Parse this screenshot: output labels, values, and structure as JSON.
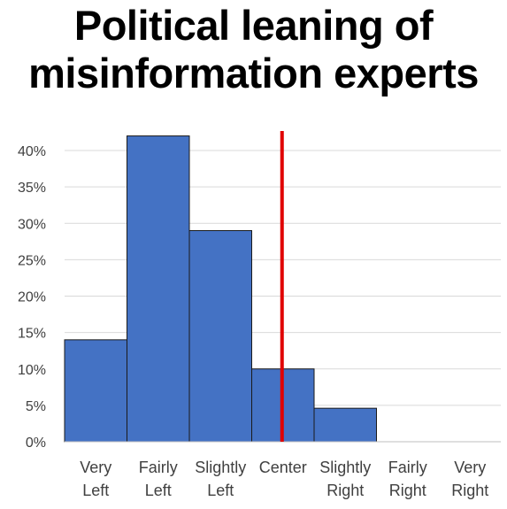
{
  "chart_data": {
    "type": "bar",
    "title_lines": [
      "Political leaning of",
      "misinformation experts"
    ],
    "categories": [
      [
        "Very",
        "Left"
      ],
      [
        "Fairly",
        "Left"
      ],
      [
        "Slightly",
        "Left"
      ],
      [
        "Center"
      ],
      [
        "Slightly",
        "Right"
      ],
      [
        "Fairly",
        "Right"
      ],
      [
        "Very",
        "Right"
      ]
    ],
    "values": [
      14,
      42,
      29,
      10,
      4.6,
      0,
      0
    ],
    "ylim": [
      0,
      40
    ],
    "yticks": [
      "0%",
      "5%",
      "10%",
      "15%",
      "20%",
      "25%",
      "30%",
      "35%",
      "40%"
    ],
    "ytick_values": [
      0,
      5,
      10,
      15,
      20,
      25,
      30,
      35,
      40
    ],
    "grid": true,
    "marker_line_category": 3,
    "colors": {
      "bar": "#4472C4",
      "bar_edge": "#1a1a1a",
      "marker_line": "#E00000",
      "grid": "#d9d9d9",
      "axis": "#bfbfbf"
    }
  }
}
